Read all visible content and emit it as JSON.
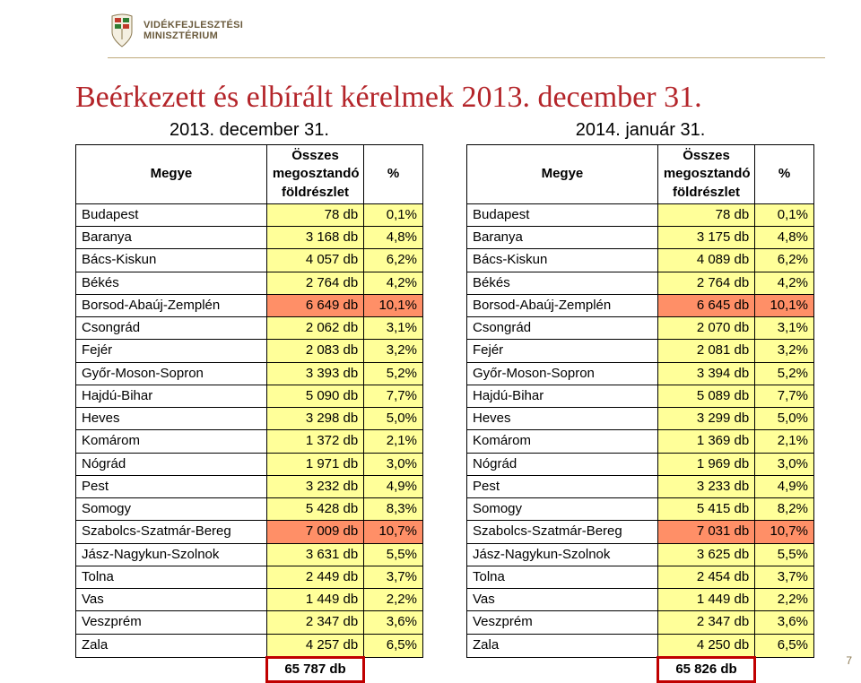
{
  "logo": {
    "line1": "VIDÉKFEJLESZTÉSI",
    "line2": "MINISZTÉRIUM"
  },
  "title": "Beérkezett és elbírált kérelmek 2013. december 31.",
  "page_number": "7",
  "col_widths": {
    "name": "55%",
    "value": "28%",
    "pct": "17%"
  },
  "header": {
    "megye": "Megye",
    "osszes": "Összes megosztandó földrészlet",
    "pct": "%"
  },
  "row_colors": {
    "default": "#ffff99",
    "highlight": "#ff8f67",
    "total_border": "#c00000"
  },
  "left": {
    "subtitle": "2013. december 31.",
    "rows": [
      {
        "name": "Budapest",
        "value": "78 db",
        "pct": "0,1%",
        "hl": false
      },
      {
        "name": "Baranya",
        "value": "3 168 db",
        "pct": "4,8%",
        "hl": false
      },
      {
        "name": "Bács-Kiskun",
        "value": "4 057 db",
        "pct": "6,2%",
        "hl": false
      },
      {
        "name": "Békés",
        "value": "2 764 db",
        "pct": "4,2%",
        "hl": false
      },
      {
        "name": "Borsod-Abaúj-Zemplén",
        "value": "6 649 db",
        "pct": "10,1%",
        "hl": true
      },
      {
        "name": "Csongrád",
        "value": "2 062 db",
        "pct": "3,1%",
        "hl": false
      },
      {
        "name": "Fejér",
        "value": "2 083 db",
        "pct": "3,2%",
        "hl": false
      },
      {
        "name": "Győr-Moson-Sopron",
        "value": "3 393 db",
        "pct": "5,2%",
        "hl": false
      },
      {
        "name": "Hajdú-Bihar",
        "value": "5 090 db",
        "pct": "7,7%",
        "hl": false
      },
      {
        "name": "Heves",
        "value": "3 298 db",
        "pct": "5,0%",
        "hl": false
      },
      {
        "name": "Komárom",
        "value": "1 372 db",
        "pct": "2,1%",
        "hl": false
      },
      {
        "name": "Nógrád",
        "value": "1 971 db",
        "pct": "3,0%",
        "hl": false
      },
      {
        "name": "Pest",
        "value": "3 232 db",
        "pct": "4,9%",
        "hl": false
      },
      {
        "name": "Somogy",
        "value": "5 428 db",
        "pct": "8,3%",
        "hl": false
      },
      {
        "name": "Szabolcs-Szatmár-Bereg",
        "value": "7 009 db",
        "pct": "10,7%",
        "hl": true
      },
      {
        "name": "Jász-Nagykun-Szolnok",
        "value": "3 631 db",
        "pct": "5,5%",
        "hl": false
      },
      {
        "name": "Tolna",
        "value": "2 449 db",
        "pct": "3,7%",
        "hl": false
      },
      {
        "name": "Vas",
        "value": "1 449 db",
        "pct": "2,2%",
        "hl": false
      },
      {
        "name": "Veszprém",
        "value": "2 347 db",
        "pct": "3,6%",
        "hl": false
      },
      {
        "name": "Zala",
        "value": "4 257 db",
        "pct": "6,5%",
        "hl": false
      }
    ],
    "total": "65 787 db"
  },
  "right": {
    "subtitle": "2014. január 31.",
    "rows": [
      {
        "name": "Budapest",
        "value": "78 db",
        "pct": "0,1%",
        "hl": false
      },
      {
        "name": "Baranya",
        "value": "3 175 db",
        "pct": "4,8%",
        "hl": false
      },
      {
        "name": "Bács-Kiskun",
        "value": "4 089 db",
        "pct": "6,2%",
        "hl": false
      },
      {
        "name": "Békés",
        "value": "2 764 db",
        "pct": "4,2%",
        "hl": false
      },
      {
        "name": "Borsod-Abaúj-Zemplén",
        "value": "6 645 db",
        "pct": "10,1%",
        "hl": true
      },
      {
        "name": "Csongrád",
        "value": "2 070 db",
        "pct": "3,1%",
        "hl": false
      },
      {
        "name": "Fejér",
        "value": "2 081 db",
        "pct": "3,2%",
        "hl": false
      },
      {
        "name": "Győr-Moson-Sopron",
        "value": "3 394 db",
        "pct": "5,2%",
        "hl": false
      },
      {
        "name": "Hajdú-Bihar",
        "value": "5 089 db",
        "pct": "7,7%",
        "hl": false
      },
      {
        "name": "Heves",
        "value": "3 299 db",
        "pct": "5,0%",
        "hl": false
      },
      {
        "name": "Komárom",
        "value": "1 369 db",
        "pct": "2,1%",
        "hl": false
      },
      {
        "name": "Nógrád",
        "value": "1 969 db",
        "pct": "3,0%",
        "hl": false
      },
      {
        "name": "Pest",
        "value": "3 233 db",
        "pct": "4,9%",
        "hl": false
      },
      {
        "name": "Somogy",
        "value": "5 415 db",
        "pct": "8,2%",
        "hl": false
      },
      {
        "name": "Szabolcs-Szatmár-Bereg",
        "value": "7 031 db",
        "pct": "10,7%",
        "hl": true
      },
      {
        "name": "Jász-Nagykun-Szolnok",
        "value": "3 625 db",
        "pct": "5,5%",
        "hl": false
      },
      {
        "name": "Tolna",
        "value": "2 454 db",
        "pct": "3,7%",
        "hl": false
      },
      {
        "name": "Vas",
        "value": "1 449 db",
        "pct": "2,2%",
        "hl": false
      },
      {
        "name": "Veszprém",
        "value": "2 347 db",
        "pct": "3,6%",
        "hl": false
      },
      {
        "name": "Zala",
        "value": "4 250 db",
        "pct": "6,5%",
        "hl": false
      }
    ],
    "total": "65 826 db"
  }
}
